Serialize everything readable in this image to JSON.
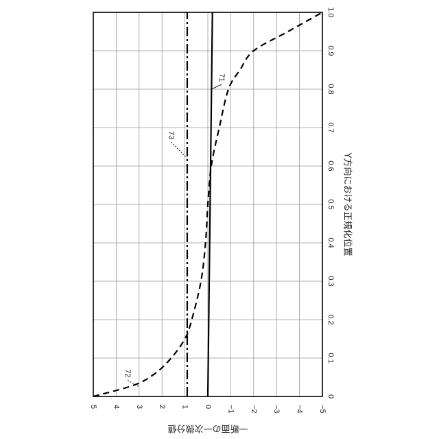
{
  "chart_data": {
    "type": "line",
    "rotation": "90deg-clockwise",
    "xlabel": "Y方向における正規化位置",
    "ylabel": "一断面の一次微分値",
    "xlim": [
      0,
      1.0
    ],
    "ylim": [
      -5,
      5
    ],
    "x_ticks": [
      "0",
      "0.1",
      "0.2",
      "0.3",
      "0.4",
      "0.5",
      "0.6",
      "0.7",
      "0.8",
      "0.9",
      "1.0"
    ],
    "y_ticks": [
      "5",
      "4",
      "3",
      "2",
      "1",
      "0",
      "−1",
      "−2",
      "−3",
      "−4",
      "−5"
    ],
    "grid": true,
    "series": [
      {
        "name": "71",
        "style": "solid",
        "x": [
          0,
          1.0
        ],
        "y": [
          0,
          -0.2
        ]
      },
      {
        "name": "72",
        "style": "dashed",
        "x": [
          0,
          0.03,
          0.06,
          0.1,
          0.15,
          0.2,
          0.3,
          0.4,
          0.5,
          0.6,
          0.7,
          0.8,
          0.85,
          0.9,
          0.95,
          1.0
        ],
        "y": [
          5.0,
          3.2,
          2.3,
          1.6,
          1.0,
          0.7,
          0.3,
          0.1,
          0.0,
          -0.15,
          -0.5,
          -0.9,
          -1.4,
          -2.0,
          -3.5,
          -5.0
        ]
      },
      {
        "name": "73",
        "style": "dash-dot",
        "x": [
          0,
          1.0
        ],
        "y": [
          0.9,
          0.9
        ]
      }
    ],
    "annotations": [
      {
        "text": "71",
        "x": 0.83,
        "y": -0.6
      },
      {
        "text": "72",
        "x": 0.06,
        "y": 3.5
      },
      {
        "text": "73",
        "x": 0.68,
        "y": 1.6
      }
    ]
  }
}
